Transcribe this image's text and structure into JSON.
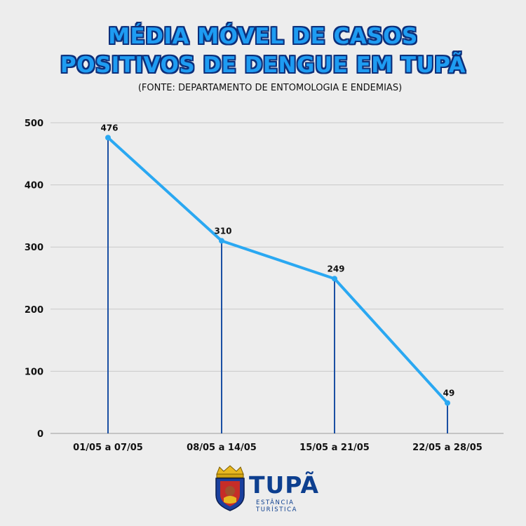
{
  "header": {
    "title_line1": "MÉDIA MÓVEL DE CASOS",
    "title_line2": "POSITIVOS DE DENGUE EM TUPÃ",
    "subtitle": "(FONTE: DEPARTAMENTO DE ENTOMOLOGIA E ENDEMIAS)"
  },
  "chart_data": {
    "type": "line",
    "categories": [
      "01/05 a 07/05",
      "08/05 a 14/05",
      "15/05 a 21/05",
      "22/05 a 28/05"
    ],
    "values": [
      476,
      310,
      249,
      49
    ],
    "ylim": [
      0,
      500
    ],
    "yticks": [
      0,
      100,
      200,
      300,
      400,
      500
    ],
    "grid": true,
    "colors": {
      "line": "#2aa8f2",
      "droplines": "#1a4fa3",
      "grid": "#c9c9c9"
    }
  },
  "logo": {
    "name": "TUPÃ",
    "tagline": "ESTÂNCIA TURÍSTICA",
    "icon": "city-coat-of-arms-icon"
  }
}
